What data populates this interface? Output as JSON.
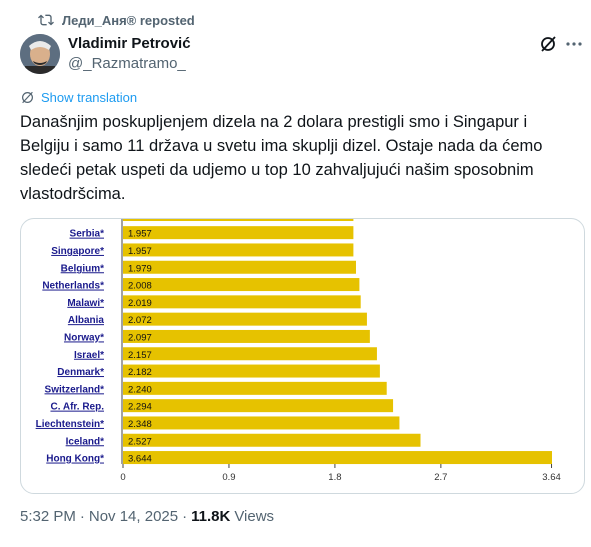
{
  "repost": {
    "text": "Леди_Аня® reposted"
  },
  "author": {
    "name": "Vladimir Petrović",
    "handle": "@_Razmatramo_"
  },
  "translate": {
    "label": "Show translation"
  },
  "tweet": {
    "text": "Današnjim poskupljenjem dizela na 2 dolara prestigli smo i Singapur i Belgiju i samo 11 država u svetu ima skuplji dizel. Ostaje nada da ćemo sledeći petak uspeti da udjemo u top 10 zahvaljujući našim sposobnim vlastodršcima."
  },
  "meta": {
    "time": "5:32 PM",
    "dot1": "·",
    "date": "Nov 14, 2025",
    "dot2": "·",
    "views_count": "11.8K",
    "views_label": "Views"
  },
  "colors": {
    "bar": "#e6c200",
    "link": "#1d9bf0",
    "muted": "#536471"
  },
  "chart_data": {
    "type": "bar",
    "orientation": "horizontal",
    "categories": [
      "Serbia*",
      "Singapore*",
      "Belgium*",
      "Netherlands*",
      "Malawi*",
      "Albania",
      "Norway*",
      "Israel*",
      "Denmark*",
      "Switzerland*",
      "C. Afr. Rep.",
      "Liechtenstein*",
      "Iceland*",
      "Hong Kong*"
    ],
    "values": [
      1.957,
      1.957,
      1.979,
      2.008,
      2.019,
      2.072,
      2.097,
      2.157,
      2.182,
      2.24,
      2.294,
      2.348,
      2.527,
      3.644
    ],
    "value_labels": [
      "1.957",
      "1.957",
      "1.979",
      "2.008",
      "2.019",
      "2.072",
      "2.097",
      "2.157",
      "2.182",
      "2.240",
      "2.294",
      "2.348",
      "2.527",
      "3.644"
    ],
    "xticks": [
      "0",
      "0.9",
      "1.8",
      "2.7",
      "3.64"
    ],
    "xtick_values": [
      0,
      0.9,
      1.8,
      2.7,
      3.64
    ],
    "xlim": [
      0,
      3.644
    ],
    "title": "",
    "xlabel": "",
    "ylabel": ""
  }
}
